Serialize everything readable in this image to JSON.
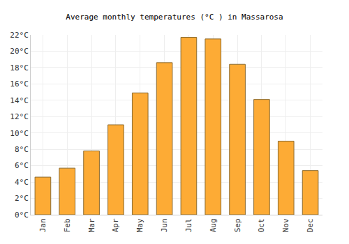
{
  "chart_data": {
    "type": "bar",
    "title": "Average monthly temperatures (°C ) in Massarosa",
    "categories": [
      "Jan",
      "Feb",
      "Mar",
      "Apr",
      "May",
      "Jun",
      "Jul",
      "Aug",
      "Sep",
      "Oct",
      "Nov",
      "Dec"
    ],
    "values": [
      4.6,
      5.7,
      7.8,
      11.0,
      14.9,
      18.6,
      21.7,
      21.5,
      18.4,
      14.1,
      9.0,
      5.4
    ],
    "color": "#fdab35",
    "ylim": [
      0,
      22
    ],
    "yticks": [
      {
        "value": 0,
        "label": "0°C"
      },
      {
        "value": 2,
        "label": "2°C"
      },
      {
        "value": 4,
        "label": "4°C"
      },
      {
        "value": 6,
        "label": "6°C"
      },
      {
        "value": 8,
        "label": "8°C"
      },
      {
        "value": 10,
        "label": "10°C"
      },
      {
        "value": 12,
        "label": "12°C"
      },
      {
        "value": 14,
        "label": "14°C"
      },
      {
        "value": 16,
        "label": "16°C"
      },
      {
        "value": 18,
        "label": "18°C"
      },
      {
        "value": 20,
        "label": "20°C"
      },
      {
        "value": 22,
        "label": "22°C"
      }
    ],
    "grid": true
  }
}
